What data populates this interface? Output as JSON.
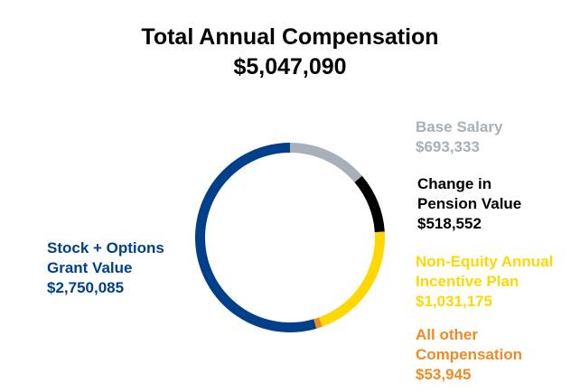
{
  "chart_data": {
    "type": "pie",
    "variant": "donut",
    "title": "Total Annual Compensation",
    "subtitle": "$5,047,090",
    "slices": [
      {
        "key": "base",
        "lines": [
          "Base Salary"
        ],
        "value": 693333,
        "value_label": "$693,333",
        "color": "#A7B0B8"
      },
      {
        "key": "pension",
        "lines": [
          "Change in",
          "Pension Value"
        ],
        "value": 518552,
        "value_label": "$518,552",
        "color": "#000000"
      },
      {
        "key": "nonequity",
        "lines": [
          "Non-Equity Annual",
          "Incentive Plan"
        ],
        "value": 1031175,
        "value_label": "$1,031,175",
        "color": "#FFD800"
      },
      {
        "key": "other",
        "lines": [
          "All other",
          "Compensation"
        ],
        "value": 53945,
        "value_label": "$53,945",
        "color": "#F08A24"
      },
      {
        "key": "stock",
        "lines": [
          "Stock + Options",
          "Grant Value"
        ],
        "value": 2750085,
        "value_label": "$2,750,085",
        "color": "#00408A"
      }
    ]
  }
}
